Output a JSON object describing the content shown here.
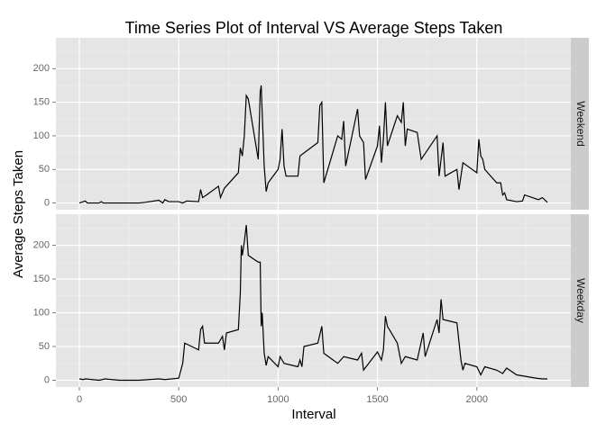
{
  "chart_data": {
    "type": "line",
    "title": "Time Series Plot of Interval VS Average Steps Taken",
    "x_label": "Interval",
    "y_label": "Average Steps Taken",
    "xlim": [
      -118,
      2473
    ],
    "ylim": [
      -10,
      246
    ],
    "xticks": [
      0,
      500,
      1000,
      1500,
      2000
    ],
    "yticks": [
      0,
      50,
      100,
      150,
      200
    ],
    "xminor": [
      250,
      750,
      1250,
      1750,
      2250
    ],
    "yminor": [
      25,
      75,
      125,
      175,
      225
    ],
    "grid": true,
    "color": "#000000",
    "facets": [
      {
        "name": "Weekend",
        "x": [
          0,
          30,
          40,
          100,
          110,
          120,
          300,
          330,
          400,
          420,
          430,
          450,
          500,
          520,
          540,
          600,
          610,
          620,
          640,
          700,
          710,
          730,
          800,
          810,
          820,
          830,
          840,
          850,
          900,
          910,
          915,
          930,
          940,
          950,
          1000,
          1010,
          1020,
          1030,
          1040,
          1100,
          1110,
          1200,
          1210,
          1220,
          1230,
          1300,
          1320,
          1330,
          1340,
          1400,
          1410,
          1430,
          1440,
          1500,
          1510,
          1520,
          1530,
          1540,
          1550,
          1600,
          1620,
          1630,
          1640,
          1650,
          1700,
          1720,
          1800,
          1810,
          1830,
          1840,
          1900,
          1910,
          1930,
          2000,
          2010,
          2020,
          2030,
          2040,
          2100,
          2120,
          2130,
          2140,
          2150,
          2200,
          2230,
          2240,
          2310,
          2330,
          2355
        ],
        "values": [
          0,
          3,
          0,
          0,
          2,
          0,
          0,
          1,
          4,
          0,
          5,
          2,
          2,
          0,
          3,
          2,
          20,
          8,
          12,
          25,
          8,
          22,
          45,
          82,
          70,
          100,
          160,
          155,
          65,
          165,
          175,
          55,
          17,
          30,
          50,
          65,
          110,
          55,
          40,
          40,
          70,
          90,
          145,
          150,
          30,
          100,
          95,
          122,
          55,
          140,
          100,
          90,
          35,
          85,
          115,
          60,
          95,
          150,
          85,
          130,
          120,
          150,
          85,
          110,
          105,
          65,
          100,
          40,
          90,
          40,
          50,
          20,
          60,
          45,
          95,
          70,
          65,
          50,
          30,
          30,
          12,
          15,
          5,
          2,
          3,
          12,
          5,
          8,
          1
        ]
      },
      {
        "name": "Weekday",
        "x": [
          0,
          20,
          30,
          100,
          130,
          200,
          300,
          400,
          430,
          500,
          520,
          530,
          600,
          610,
          620,
          630,
          700,
          720,
          730,
          740,
          800,
          810,
          815,
          820,
          830,
          840,
          850,
          900,
          910,
          915,
          920,
          930,
          940,
          950,
          1000,
          1010,
          1030,
          1100,
          1110,
          1120,
          1130,
          1200,
          1220,
          1230,
          1300,
          1330,
          1400,
          1420,
          1430,
          1500,
          1520,
          1530,
          1540,
          1550,
          1600,
          1620,
          1640,
          1700,
          1730,
          1740,
          1800,
          1810,
          1820,
          1830,
          1900,
          1920,
          1930,
          1940,
          2000,
          2020,
          2040,
          2100,
          2130,
          2150,
          2200,
          2300,
          2330,
          2355
        ],
        "values": [
          2,
          1,
          2,
          0,
          2,
          0,
          0,
          2,
          1,
          3,
          25,
          55,
          45,
          75,
          80,
          55,
          55,
          65,
          45,
          70,
          75,
          130,
          200,
          185,
          205,
          230,
          185,
          175,
          175,
          80,
          100,
          40,
          22,
          35,
          20,
          35,
          25,
          20,
          30,
          20,
          50,
          55,
          80,
          40,
          25,
          35,
          30,
          40,
          15,
          42,
          30,
          45,
          95,
          80,
          55,
          25,
          35,
          30,
          70,
          35,
          90,
          70,
          120,
          90,
          85,
          30,
          15,
          25,
          20,
          8,
          20,
          15,
          10,
          18,
          8,
          3,
          2,
          2
        ]
      }
    ]
  }
}
